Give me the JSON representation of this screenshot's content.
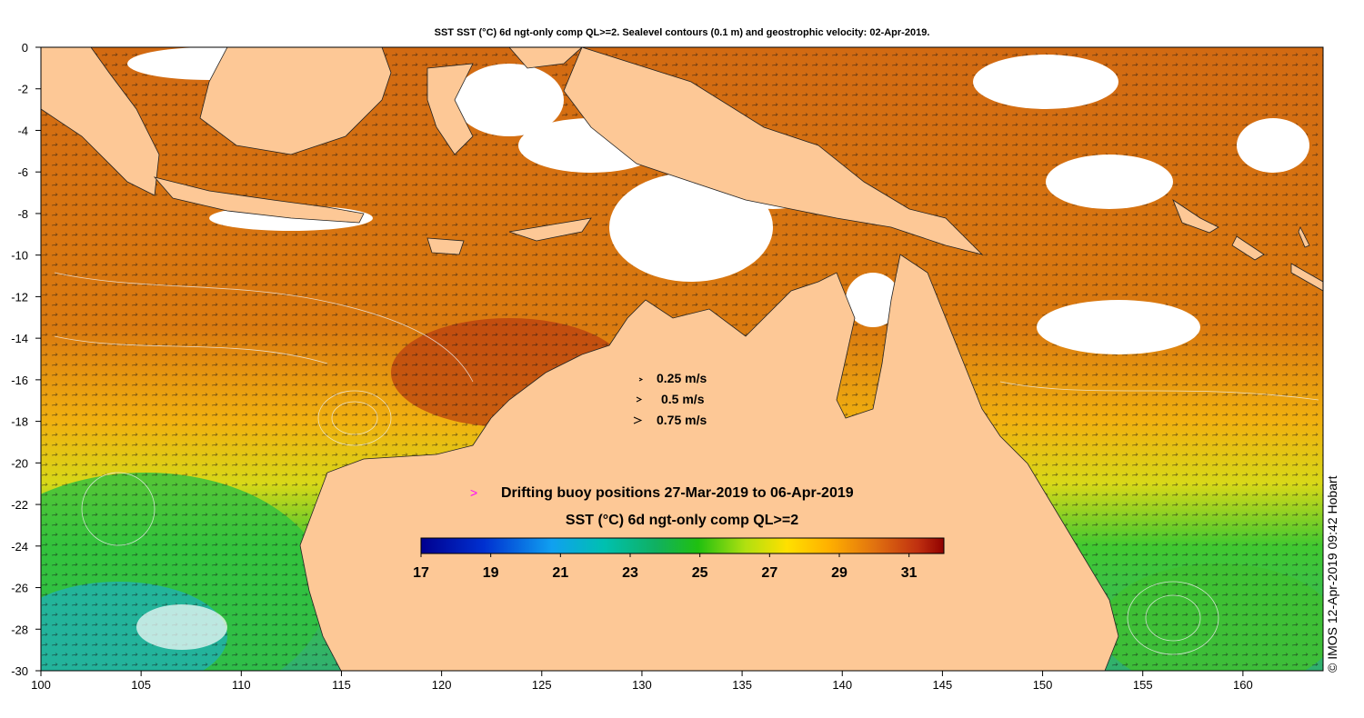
{
  "title": "SST SST (°C) 6d ngt-only comp QL>=2. Sealevel contours (0.1 m) and geostrophic velocity: 02-Apr-2019.",
  "axes": {
    "x_ticks": [
      "100",
      "105",
      "110",
      "115",
      "120",
      "125",
      "130",
      "135",
      "140",
      "145",
      "150",
      "155",
      "160"
    ],
    "y_ticks": [
      "0",
      "-2",
      "-4",
      "-6",
      "-8",
      "-10",
      "-12",
      "-14",
      "-16",
      "-18",
      "-20",
      "-22",
      "-24",
      "-26",
      "-28",
      "-30"
    ],
    "lon_range": [
      100,
      164
    ],
    "lat_range": [
      -30,
      0
    ]
  },
  "velocity_legend": [
    "0.25 m/s",
    "0.5 m/s",
    "0.75 m/s"
  ],
  "buoy_legend": {
    "symbol": ">",
    "label": "Drifting buoy positions 27-Mar-2019 to 06-Apr-2019",
    "color": "#ff00ff"
  },
  "colorbar": {
    "label": "SST (°C) 6d ngt-only comp QL>=2",
    "ticks": [
      "17",
      "19",
      "21",
      "23",
      "25",
      "27",
      "29",
      "31"
    ],
    "range": [
      17,
      32
    ]
  },
  "credit": "© IMOS 12-Apr-2019 09:42 Hobart",
  "colors": {
    "land": "#fdc896",
    "no_data": "#ffffff",
    "contour": "#e8e8e8"
  }
}
